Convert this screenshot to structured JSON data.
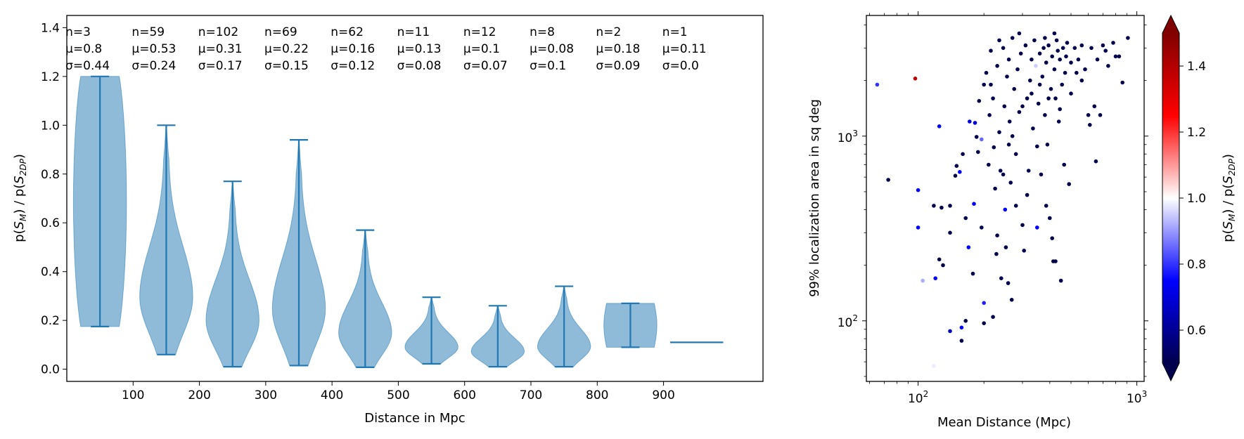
{
  "chart_data": [
    {
      "type": "violin",
      "xlabel": "Distance in Mpc",
      "ylabel": "p(S_M) / p(S_2DP)",
      "ylabel_parts": {
        "p1": "p(",
        "s1": "S",
        "sub1": "M",
        "mid": ") / p(",
        "s2": "S",
        "sub2": "2DP",
        "end": ")"
      },
      "xlim": [
        0,
        1050
      ],
      "ylim": [
        -0.05,
        1.45
      ],
      "xticks": [
        100,
        200,
        300,
        400,
        500,
        600,
        700,
        800,
        900
      ],
      "yticks": [
        0.0,
        0.2,
        0.4,
        0.6,
        0.8,
        1.0,
        1.2,
        1.4
      ],
      "color": "#1f77b4",
      "groups": [
        {
          "x": 50,
          "n": "n=3",
          "mu": "μ=0.8",
          "sigma": "σ=0.44",
          "min": 0.175,
          "max": 1.2
        },
        {
          "x": 150,
          "n": "n=59",
          "mu": "μ=0.53",
          "sigma": "σ=0.24",
          "min": 0.06,
          "max": 1.0
        },
        {
          "x": 250,
          "n": "n=102",
          "mu": "μ=0.31",
          "sigma": "σ=0.17",
          "min": 0.01,
          "max": 0.77
        },
        {
          "x": 350,
          "n": "n=69",
          "mu": "μ=0.22",
          "sigma": "σ=0.15",
          "min": 0.015,
          "max": 0.94
        },
        {
          "x": 450,
          "n": "n=62",
          "mu": "μ=0.16",
          "sigma": "σ=0.12",
          "min": 0.008,
          "max": 0.57
        },
        {
          "x": 550,
          "n": "n=11",
          "mu": "μ=0.13",
          "sigma": "σ=0.08",
          "min": 0.022,
          "max": 0.295
        },
        {
          "x": 650,
          "n": "n=12",
          "mu": "μ=0.1",
          "sigma": "σ=0.07",
          "min": 0.01,
          "max": 0.26
        },
        {
          "x": 750,
          "n": "n=8",
          "mu": "μ=0.08",
          "sigma": "σ=0.1",
          "min": 0.01,
          "max": 0.34
        },
        {
          "x": 850,
          "n": "n=2",
          "mu": "μ=0.18",
          "sigma": "σ=0.09",
          "min": 0.09,
          "max": 0.27
        },
        {
          "x": 950,
          "n": "n=1",
          "mu": "μ=0.11",
          "sigma": "σ=0.0",
          "min": 0.11,
          "max": 0.11
        }
      ]
    },
    {
      "type": "scatter",
      "xlabel": "Mean Distance (Mpc)",
      "ylabel": "99% localization area in sq deg",
      "xscale": "log",
      "yscale": "log",
      "xlim": [
        58,
        1080
      ],
      "ylim": [
        47,
        4500
      ],
      "xticks": [
        {
          "base": "10",
          "exp": "2",
          "value": 100
        },
        {
          "base": "10",
          "exp": "3",
          "value": 1000
        }
      ],
      "yticks": [
        {
          "base": "10",
          "exp": "2",
          "value": 100
        },
        {
          "base": "10",
          "exp": "3",
          "value": 1000
        }
      ],
      "colorbar": {
        "label": "p(S_M) / p(S_2DP)",
        "range": [
          0.5,
          1.5
        ],
        "ticks": [
          "0.6",
          "0.8",
          "1.0",
          "1.2",
          "1.4"
        ],
        "tick_values": [
          0.6,
          0.8,
          1.0,
          1.2,
          1.4
        ],
        "cmap": "seismic",
        "extend": "both"
      },
      "points": [
        {
          "x": 65,
          "y": 1900,
          "c": 0.8
        },
        {
          "x": 97,
          "y": 2050,
          "c": 1.38
        },
        {
          "x": 73,
          "y": 580,
          "c": 0.5
        },
        {
          "x": 100,
          "y": 510,
          "c": 0.75
        },
        {
          "x": 100,
          "y": 320,
          "c": 0.75
        },
        {
          "x": 105,
          "y": 165,
          "c": 0.92
        },
        {
          "x": 118,
          "y": 57,
          "c": 0.98
        },
        {
          "x": 125,
          "y": 1130,
          "c": 0.75
        },
        {
          "x": 118,
          "y": 420,
          "c": 0.5
        },
        {
          "x": 128,
          "y": 410,
          "c": 0.5
        },
        {
          "x": 125,
          "y": 215,
          "c": 0.5
        },
        {
          "x": 130,
          "y": 200,
          "c": 0.5
        },
        {
          "x": 120,
          "y": 170,
          "c": 0.75
        },
        {
          "x": 140,
          "y": 88,
          "c": 0.65
        },
        {
          "x": 158,
          "y": 92,
          "c": 0.75
        },
        {
          "x": 158,
          "y": 78,
          "c": 0.5
        },
        {
          "x": 165,
          "y": 100,
          "c": 0.5
        },
        {
          "x": 200,
          "y": 125,
          "c": 0.78
        },
        {
          "x": 200,
          "y": 97,
          "c": 0.5
        },
        {
          "x": 220,
          "y": 105,
          "c": 0.5
        },
        {
          "x": 140,
          "y": 420,
          "c": 0.5
        },
        {
          "x": 140,
          "y": 300,
          "c": 0.5
        },
        {
          "x": 148,
          "y": 610,
          "c": 0.5
        },
        {
          "x": 150,
          "y": 690,
          "c": 0.5
        },
        {
          "x": 155,
          "y": 640,
          "c": 0.75
        },
        {
          "x": 160,
          "y": 800,
          "c": 0.5
        },
        {
          "x": 165,
          "y": 360,
          "c": 0.5
        },
        {
          "x": 170,
          "y": 250,
          "c": 0.75
        },
        {
          "x": 172,
          "y": 1200,
          "c": 0.7
        },
        {
          "x": 178,
          "y": 180,
          "c": 0.5
        },
        {
          "x": 180,
          "y": 430,
          "c": 0.75
        },
        {
          "x": 182,
          "y": 1180,
          "c": 0.7
        },
        {
          "x": 185,
          "y": 990,
          "c": 0.5
        },
        {
          "x": 188,
          "y": 820,
          "c": 0.5
        },
        {
          "x": 195,
          "y": 960,
          "c": 0.85
        },
        {
          "x": 195,
          "y": 320,
          "c": 0.5
        },
        {
          "x": 200,
          "y": 1900,
          "c": 0.5
        },
        {
          "x": 205,
          "y": 2200,
          "c": 0.5
        },
        {
          "x": 210,
          "y": 700,
          "c": 0.5
        },
        {
          "x": 212,
          "y": 1300,
          "c": 0.5
        },
        {
          "x": 215,
          "y": 2900,
          "c": 0.5
        },
        {
          "x": 220,
          "y": 1600,
          "c": 0.5
        },
        {
          "x": 222,
          "y": 870,
          "c": 0.5
        },
        {
          "x": 225,
          "y": 520,
          "c": 0.5
        },
        {
          "x": 228,
          "y": 230,
          "c": 0.5
        },
        {
          "x": 230,
          "y": 2400,
          "c": 0.5
        },
        {
          "x": 235,
          "y": 1050,
          "c": 0.5
        },
        {
          "x": 238,
          "y": 650,
          "c": 0.5
        },
        {
          "x": 240,
          "y": 170,
          "c": 0.5
        },
        {
          "x": 245,
          "y": 3000,
          "c": 0.5
        },
        {
          "x": 248,
          "y": 1450,
          "c": 0.5
        },
        {
          "x": 250,
          "y": 400,
          "c": 0.75
        },
        {
          "x": 252,
          "y": 250,
          "c": 0.5
        },
        {
          "x": 255,
          "y": 2100,
          "c": 0.5
        },
        {
          "x": 258,
          "y": 160,
          "c": 0.5
        },
        {
          "x": 260,
          "y": 2600,
          "c": 0.5
        },
        {
          "x": 262,
          "y": 1200,
          "c": 0.5
        },
        {
          "x": 265,
          "y": 560,
          "c": 0.5
        },
        {
          "x": 268,
          "y": 130,
          "c": 0.5
        },
        {
          "x": 270,
          "y": 3400,
          "c": 0.5
        },
        {
          "x": 275,
          "y": 1800,
          "c": 0.5
        },
        {
          "x": 280,
          "y": 800,
          "c": 0.5
        },
        {
          "x": 285,
          "y": 2300,
          "c": 0.5
        },
        {
          "x": 290,
          "y": 1350,
          "c": 0.5
        },
        {
          "x": 295,
          "y": 2800,
          "c": 0.5
        },
        {
          "x": 300,
          "y": 330,
          "c": 0.5
        },
        {
          "x": 305,
          "y": 240,
          "c": 0.5
        },
        {
          "x": 310,
          "y": 3100,
          "c": 0.5
        },
        {
          "x": 315,
          "y": 1600,
          "c": 0.5
        },
        {
          "x": 320,
          "y": 650,
          "c": 0.5
        },
        {
          "x": 325,
          "y": 2000,
          "c": 0.5
        },
        {
          "x": 330,
          "y": 2600,
          "c": 0.5
        },
        {
          "x": 335,
          "y": 1100,
          "c": 0.5
        },
        {
          "x": 340,
          "y": 3300,
          "c": 0.5
        },
        {
          "x": 345,
          "y": 2400,
          "c": 0.95
        },
        {
          "x": 350,
          "y": 320,
          "c": 0.75
        },
        {
          "x": 355,
          "y": 1500,
          "c": 0.5
        },
        {
          "x": 360,
          "y": 2800,
          "c": 0.5
        },
        {
          "x": 365,
          "y": 620,
          "c": 0.5
        },
        {
          "x": 370,
          "y": 2100,
          "c": 0.5
        },
        {
          "x": 375,
          "y": 3000,
          "c": 0.5
        },
        {
          "x": 380,
          "y": 1300,
          "c": 0.5
        },
        {
          "x": 385,
          "y": 2500,
          "c": 0.5
        },
        {
          "x": 390,
          "y": 900,
          "c": 0.5
        },
        {
          "x": 395,
          "y": 3100,
          "c": 0.5
        },
        {
          "x": 400,
          "y": 360,
          "c": 0.5
        },
        {
          "x": 405,
          "y": 1800,
          "c": 0.5
        },
        {
          "x": 410,
          "y": 2700,
          "c": 0.5
        },
        {
          "x": 415,
          "y": 210,
          "c": 0.5
        },
        {
          "x": 420,
          "y": 2300,
          "c": 0.5
        },
        {
          "x": 425,
          "y": 1600,
          "c": 0.5
        },
        {
          "x": 430,
          "y": 3300,
          "c": 0.5
        },
        {
          "x": 435,
          "y": 2900,
          "c": 0.5
        },
        {
          "x": 440,
          "y": 1200,
          "c": 0.5
        },
        {
          "x": 445,
          "y": 2600,
          "c": 0.5
        },
        {
          "x": 450,
          "y": 165,
          "c": 0.5
        },
        {
          "x": 455,
          "y": 1900,
          "c": 0.5
        },
        {
          "x": 460,
          "y": 3000,
          "c": 0.5
        },
        {
          "x": 465,
          "y": 700,
          "c": 0.5
        },
        {
          "x": 470,
          "y": 2200,
          "c": 0.5
        },
        {
          "x": 480,
          "y": 3200,
          "c": 0.5
        },
        {
          "x": 490,
          "y": 550,
          "c": 0.5
        },
        {
          "x": 500,
          "y": 2500,
          "c": 0.5
        },
        {
          "x": 520,
          "y": 3000,
          "c": 0.5
        },
        {
          "x": 540,
          "y": 2600,
          "c": 0.5
        },
        {
          "x": 560,
          "y": 3100,
          "c": 0.5
        },
        {
          "x": 580,
          "y": 2300,
          "c": 0.5
        },
        {
          "x": 600,
          "y": 1300,
          "c": 0.5
        },
        {
          "x": 620,
          "y": 3000,
          "c": 0.5
        },
        {
          "x": 640,
          "y": 1450,
          "c": 0.5
        },
        {
          "x": 660,
          "y": 2600,
          "c": 0.5
        },
        {
          "x": 680,
          "y": 1300,
          "c": 0.5
        },
        {
          "x": 650,
          "y": 730,
          "c": 0.5
        },
        {
          "x": 700,
          "y": 3100,
          "c": 0.5
        },
        {
          "x": 740,
          "y": 2400,
          "c": 0.5
        },
        {
          "x": 780,
          "y": 3200,
          "c": 0.5
        },
        {
          "x": 800,
          "y": 2700,
          "c": 0.5
        },
        {
          "x": 830,
          "y": 2700,
          "c": 0.5
        },
        {
          "x": 860,
          "y": 1950,
          "c": 0.5
        },
        {
          "x": 910,
          "y": 3400,
          "c": 0.5
        },
        {
          "x": 560,
          "y": 2000,
          "c": 0.5
        },
        {
          "x": 610,
          "y": 1150,
          "c": 0.5
        },
        {
          "x": 720,
          "y": 2900,
          "c": 0.5
        },
        {
          "x": 235,
          "y": 3300,
          "c": 0.5
        },
        {
          "x": 290,
          "y": 3600,
          "c": 0.5
        },
        {
          "x": 330,
          "y": 1700,
          "c": 0.5
        },
        {
          "x": 380,
          "y": 3400,
          "c": 0.5
        },
        {
          "x": 420,
          "y": 3600,
          "c": 0.5
        },
        {
          "x": 260,
          "y": 900,
          "c": 0.5
        },
        {
          "x": 300,
          "y": 1450,
          "c": 0.5
        },
        {
          "x": 350,
          "y": 880,
          "c": 0.5
        },
        {
          "x": 280,
          "y": 420,
          "c": 0.5
        },
        {
          "x": 315,
          "y": 480,
          "c": 0.5
        },
        {
          "x": 385,
          "y": 420,
          "c": 0.5
        },
        {
          "x": 410,
          "y": 280,
          "c": 0.5
        },
        {
          "x": 425,
          "y": 210,
          "c": 0.5
        },
        {
          "x": 190,
          "y": 1550,
          "c": 0.5
        },
        {
          "x": 215,
          "y": 1900,
          "c": 0.5
        },
        {
          "x": 270,
          "y": 1000,
          "c": 0.5
        },
        {
          "x": 230,
          "y": 290,
          "c": 0.5
        },
        {
          "x": 245,
          "y": 620,
          "c": 0.5
        },
        {
          "x": 360,
          "y": 1900,
          "c": 0.5
        },
        {
          "x": 395,
          "y": 1600,
          "c": 0.5
        },
        {
          "x": 445,
          "y": 1400,
          "c": 0.5
        },
        {
          "x": 475,
          "y": 2700,
          "c": 0.5
        },
        {
          "x": 500,
          "y": 1700,
          "c": 0.5
        },
        {
          "x": 530,
          "y": 2200,
          "c": 0.5
        }
      ]
    }
  ]
}
